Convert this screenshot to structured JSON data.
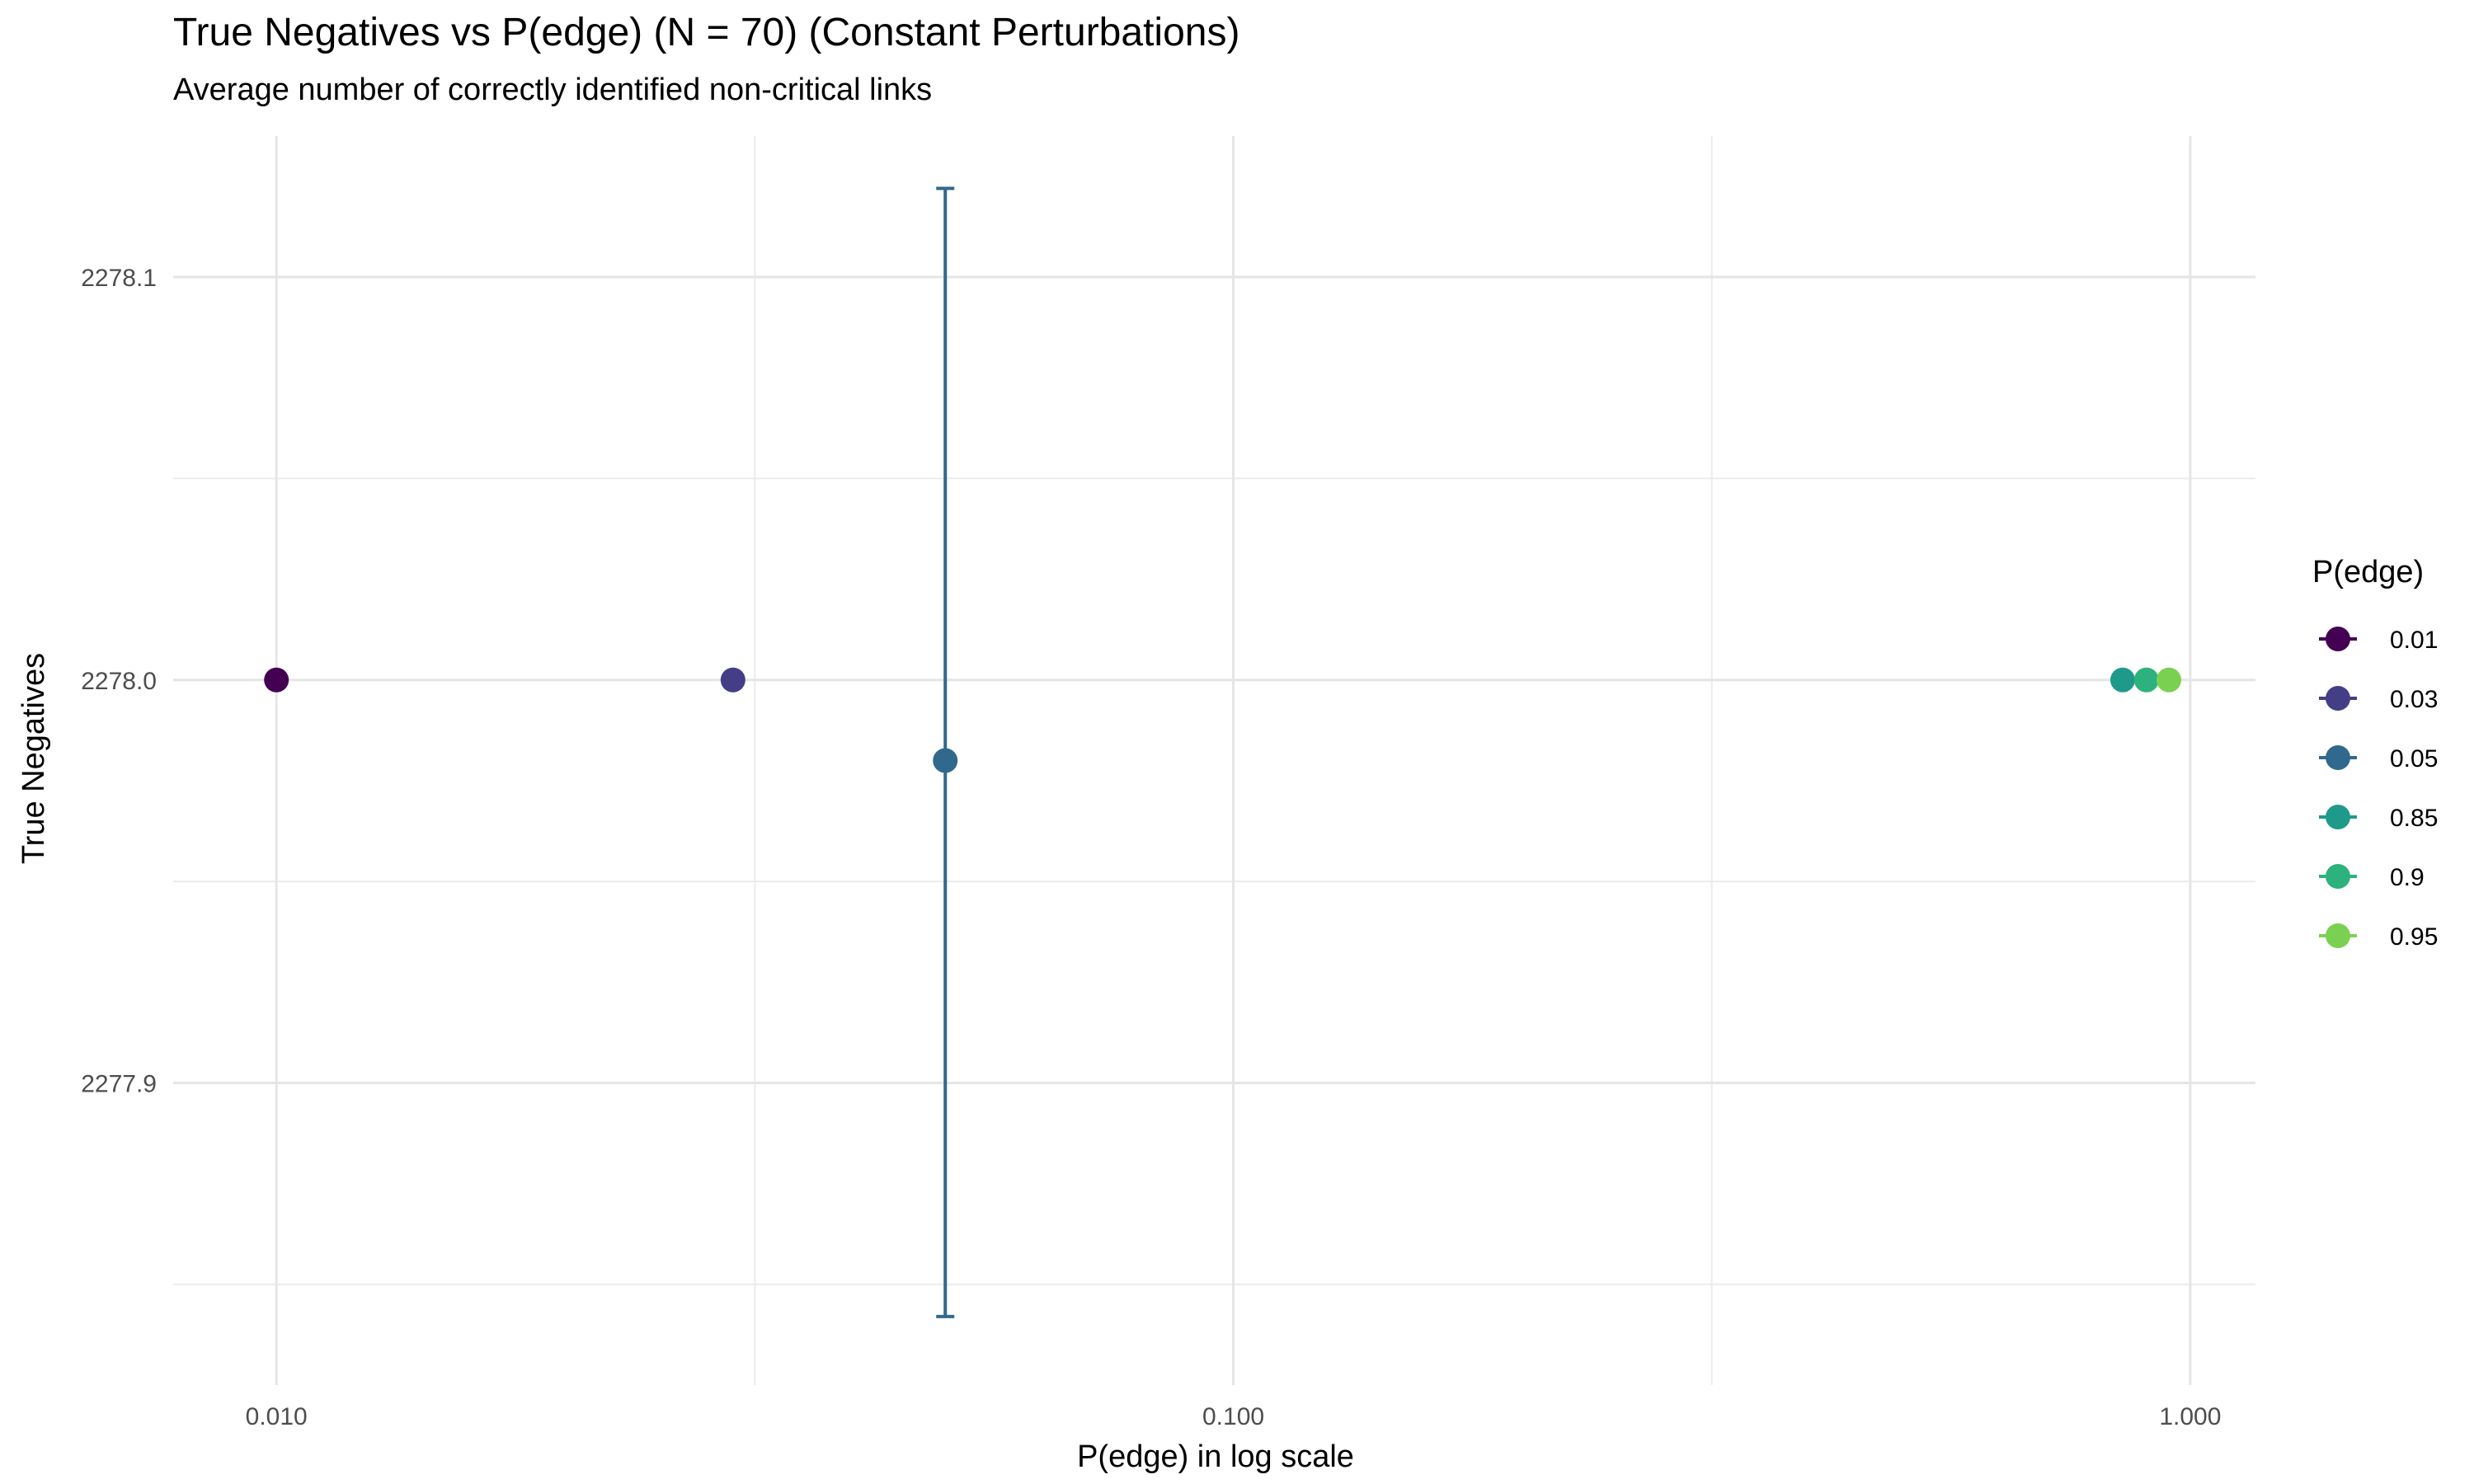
{
  "chart_data": {
    "type": "scatter",
    "title": "True Negatives vs P(edge) (N = 70) (Constant Perturbations)",
    "subtitle": "Average number of correctly identified non-critical links",
    "xlabel": "P(edge) in log scale",
    "ylabel": "True Negatives",
    "x_scale": "log10",
    "xlim": [
      0.0078,
      1.17
    ],
    "ylim": [
      2277.825,
      2278.135
    ],
    "x_ticks": [
      {
        "value": 0.01,
        "label": "0.010"
      },
      {
        "value": 0.1,
        "label": "0.100"
      },
      {
        "value": 1.0,
        "label": "1.000"
      }
    ],
    "y_ticks": [
      {
        "value": 2277.9,
        "label": "2277.9"
      },
      {
        "value": 2278.0,
        "label": "2278.0"
      },
      {
        "value": 2278.1,
        "label": "2278.1"
      }
    ],
    "grid": true,
    "legend_title": "P(edge)",
    "legend_position": "right",
    "series": [
      {
        "name": "0.01",
        "x": 0.01,
        "y": 2278.0,
        "color": "#440154"
      },
      {
        "name": "0.03",
        "x": 0.03,
        "y": 2278.0,
        "color": "#433E85"
      },
      {
        "name": "0.05",
        "x": 0.05,
        "y": 2277.98,
        "ymin": 2277.842,
        "ymax": 2278.122,
        "color": "#31688E"
      },
      {
        "name": "0.85",
        "x": 0.85,
        "y": 2278.0,
        "color": "#1F9A8A"
      },
      {
        "name": "0.9",
        "x": 0.9,
        "y": 2278.0,
        "color": "#2DB27D"
      },
      {
        "name": "0.95",
        "x": 0.95,
        "y": 2278.0,
        "color": "#7AD151"
      }
    ]
  }
}
